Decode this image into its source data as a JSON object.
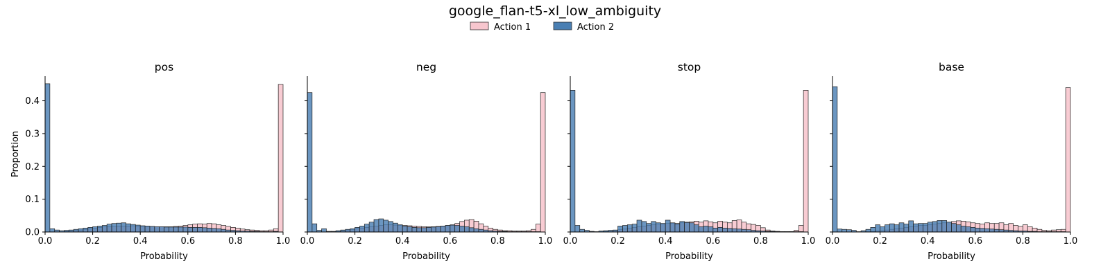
{
  "figure": {
    "title": "google_flan-t5-xl_low_ambiguity"
  },
  "legend": {
    "placement": "top-center",
    "items": [
      {
        "label": "Action 1",
        "color": "#f7c6ce"
      },
      {
        "label": "Action 2",
        "color": "#4a7fb3"
      }
    ]
  },
  "chart_data": [
    {
      "type": "bar",
      "title": "pos",
      "xlabel": "Probability",
      "ylabel": "Proportion",
      "xlim": [
        0.0,
        1.0
      ],
      "ylim": [
        0.0,
        0.475
      ],
      "xticks": [
        "0.0",
        "0.2",
        "0.4",
        "0.6",
        "0.8",
        "1.0"
      ],
      "yticks": [
        "0.0",
        "0.1",
        "0.2",
        "0.3",
        "0.4"
      ],
      "bin_width": 0.02,
      "series": [
        {
          "name": "Action 1",
          "values": [
            0.0,
            0.0,
            0.0,
            0.0,
            0.002,
            0.003,
            0.005,
            0.006,
            0.008,
            0.01,
            0.012,
            0.014,
            0.016,
            0.016,
            0.017,
            0.018,
            0.018,
            0.018,
            0.019,
            0.018,
            0.018,
            0.017,
            0.017,
            0.016,
            0.016,
            0.016,
            0.016,
            0.017,
            0.018,
            0.02,
            0.022,
            0.024,
            0.025,
            0.024,
            0.026,
            0.025,
            0.022,
            0.02,
            0.017,
            0.014,
            0.012,
            0.009,
            0.007,
            0.006,
            0.005,
            0.004,
            0.004,
            0.006,
            0.01,
            0.45
          ]
        },
        {
          "name": "Action 2",
          "values": [
            0.452,
            0.01,
            0.006,
            0.004,
            0.005,
            0.006,
            0.008,
            0.01,
            0.012,
            0.014,
            0.016,
            0.018,
            0.02,
            0.024,
            0.026,
            0.027,
            0.028,
            0.025,
            0.023,
            0.021,
            0.019,
            0.018,
            0.017,
            0.016,
            0.016,
            0.015,
            0.015,
            0.015,
            0.015,
            0.015,
            0.014,
            0.014,
            0.014,
            0.013,
            0.012,
            0.011,
            0.01,
            0.008,
            0.006,
            0.005,
            0.004,
            0.003,
            0.003,
            0.002,
            0.002,
            0.001,
            0.001,
            0.001,
            0.002,
            0.0
          ]
        }
      ]
    },
    {
      "type": "bar",
      "title": "neg",
      "xlabel": "Probability",
      "ylabel": "",
      "xlim": [
        0.0,
        1.0
      ],
      "ylim": [
        0.0,
        0.475
      ],
      "xticks": [
        "0.0",
        "0.2",
        "0.4",
        "0.6",
        "0.8",
        "1.0"
      ],
      "yticks": [
        "0.0",
        "0.1",
        "0.2",
        "0.3",
        "0.4"
      ],
      "bin_width": 0.02,
      "series": [
        {
          "name": "Action 1",
          "values": [
            0.0,
            0.0,
            0.0,
            0.0,
            0.0,
            0.001,
            0.002,
            0.004,
            0.006,
            0.008,
            0.01,
            0.012,
            0.014,
            0.016,
            0.018,
            0.02,
            0.022,
            0.022,
            0.021,
            0.02,
            0.02,
            0.019,
            0.018,
            0.017,
            0.016,
            0.016,
            0.016,
            0.017,
            0.018,
            0.02,
            0.022,
            0.026,
            0.032,
            0.036,
            0.038,
            0.033,
            0.025,
            0.018,
            0.012,
            0.008,
            0.006,
            0.004,
            0.004,
            0.003,
            0.003,
            0.003,
            0.004,
            0.008,
            0.024,
            0.425
          ]
        },
        {
          "name": "Action 2",
          "values": [
            0.425,
            0.025,
            0.005,
            0.01,
            0.002,
            0.002,
            0.004,
            0.006,
            0.008,
            0.01,
            0.014,
            0.018,
            0.024,
            0.03,
            0.038,
            0.04,
            0.036,
            0.032,
            0.027,
            0.022,
            0.018,
            0.016,
            0.014,
            0.013,
            0.013,
            0.014,
            0.015,
            0.016,
            0.018,
            0.02,
            0.021,
            0.02,
            0.018,
            0.016,
            0.013,
            0.01,
            0.008,
            0.006,
            0.004,
            0.003,
            0.002,
            0.002,
            0.001,
            0.001,
            0.001,
            0.001,
            0.001,
            0.001,
            0.001,
            0.0
          ]
        }
      ]
    },
    {
      "type": "bar",
      "title": "stop",
      "xlabel": "Probability",
      "ylabel": "",
      "xlim": [
        0.0,
        1.0
      ],
      "ylim": [
        0.0,
        0.475
      ],
      "xticks": [
        "0.0",
        "0.2",
        "0.4",
        "0.6",
        "0.8",
        "1.0"
      ],
      "yticks": [
        "0.0",
        "0.1",
        "0.2",
        "0.3",
        "0.4"
      ],
      "bin_width": 0.02,
      "series": [
        {
          "name": "Action 1",
          "values": [
            0.0,
            0.0,
            0.0,
            0.0,
            0.0,
            0.0,
            0.001,
            0.002,
            0.003,
            0.005,
            0.007,
            0.009,
            0.012,
            0.014,
            0.016,
            0.018,
            0.02,
            0.022,
            0.024,
            0.024,
            0.026,
            0.027,
            0.026,
            0.028,
            0.03,
            0.031,
            0.033,
            0.03,
            0.034,
            0.031,
            0.028,
            0.033,
            0.03,
            0.028,
            0.035,
            0.037,
            0.03,
            0.025,
            0.023,
            0.02,
            0.013,
            0.006,
            0.003,
            0.002,
            0.001,
            0.001,
            0.001,
            0.005,
            0.02,
            0.432
          ]
        },
        {
          "name": "Action 2",
          "values": [
            0.432,
            0.02,
            0.008,
            0.005,
            0.002,
            0.001,
            0.003,
            0.004,
            0.005,
            0.006,
            0.018,
            0.02,
            0.022,
            0.024,
            0.036,
            0.032,
            0.026,
            0.032,
            0.028,
            0.026,
            0.036,
            0.028,
            0.025,
            0.032,
            0.029,
            0.028,
            0.022,
            0.016,
            0.018,
            0.016,
            0.012,
            0.014,
            0.012,
            0.011,
            0.01,
            0.009,
            0.008,
            0.007,
            0.005,
            0.004,
            0.003,
            0.002,
            0.002,
            0.001,
            0.001,
            0.001,
            0.001,
            0.001,
            0.001,
            0.0
          ]
        }
      ]
    },
    {
      "type": "bar",
      "title": "base",
      "xlabel": "Probability",
      "ylabel": "",
      "xlim": [
        0.0,
        1.0
      ],
      "ylim": [
        0.0,
        0.475
      ],
      "xticks": [
        "0.0",
        "0.2",
        "0.4",
        "0.6",
        "0.8",
        "1.0"
      ],
      "yticks": [
        "0.0",
        "0.1",
        "0.2",
        "0.3",
        "0.4"
      ],
      "bin_width": 0.02,
      "series": [
        {
          "name": "Action 1",
          "values": [
            0.0,
            0.0,
            0.0,
            0.0,
            0.0,
            0.0,
            0.0,
            0.001,
            0.002,
            0.003,
            0.004,
            0.006,
            0.008,
            0.01,
            0.012,
            0.014,
            0.016,
            0.018,
            0.02,
            0.02,
            0.022,
            0.024,
            0.026,
            0.028,
            0.03,
            0.032,
            0.034,
            0.033,
            0.031,
            0.028,
            0.026,
            0.024,
            0.028,
            0.026,
            0.026,
            0.028,
            0.022,
            0.026,
            0.02,
            0.017,
            0.022,
            0.016,
            0.012,
            0.008,
            0.005,
            0.004,
            0.006,
            0.007,
            0.008,
            0.44
          ]
        },
        {
          "name": "Action 2",
          "values": [
            0.443,
            0.009,
            0.008,
            0.007,
            0.005,
            0.001,
            0.004,
            0.008,
            0.014,
            0.022,
            0.016,
            0.022,
            0.025,
            0.022,
            0.028,
            0.024,
            0.034,
            0.025,
            0.026,
            0.026,
            0.03,
            0.032,
            0.035,
            0.035,
            0.03,
            0.026,
            0.022,
            0.018,
            0.016,
            0.014,
            0.012,
            0.011,
            0.01,
            0.009,
            0.008,
            0.007,
            0.006,
            0.005,
            0.004,
            0.003,
            0.003,
            0.002,
            0.002,
            0.001,
            0.001,
            0.001,
            0.001,
            0.001,
            0.001,
            0.0
          ]
        }
      ]
    }
  ]
}
